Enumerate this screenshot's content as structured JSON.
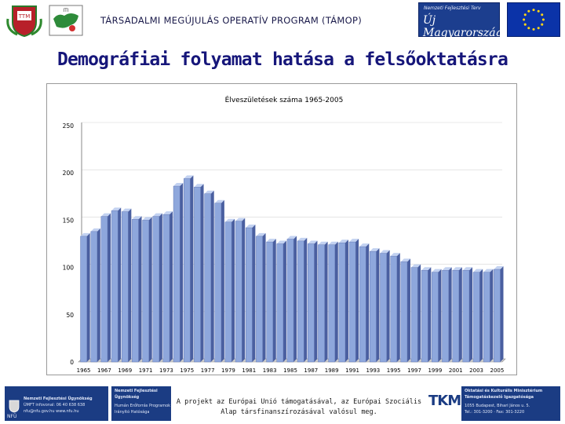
{
  "header": {
    "program_title": "TÁRSADALMI MEGÚJULÁS OPERATÍV PROGRAM (TÁMOP)",
    "logo_crest_text": "TTM",
    "logo_map_text": "ITI",
    "um_logo_top": "Nemzeti Fejlesztési Terv",
    "um_logo_main": "Új Magyarország"
  },
  "slide": {
    "title": "Demográfiai folyamat hatása a felsőoktatásra"
  },
  "colors": {
    "title": "#16167a",
    "bar_face": "#8ea7dc",
    "bar_side": "#4a5fa0",
    "bar_top": "#c3d2f1",
    "plot_bg": "#ffffff",
    "frame": "#9a9a9a"
  },
  "chart_data": {
    "type": "bar",
    "title": "Élveszületések száma 1965-2005",
    "xlabel": "",
    "ylabel": "",
    "ylim": [
      0,
      250
    ],
    "yticks": [
      0,
      50,
      100,
      150,
      200,
      250
    ],
    "grid": "none",
    "legend": "none",
    "three_d": true,
    "categories": [
      "1965",
      "1966",
      "1967",
      "1968",
      "1969",
      "1970",
      "1971",
      "1972",
      "1973",
      "1974",
      "1975",
      "1976",
      "1977",
      "1978",
      "1979",
      "1980",
      "1981",
      "1982",
      "1983",
      "1984",
      "1985",
      "1986",
      "1987",
      "1988",
      "1989",
      "1990",
      "1991",
      "1992",
      "1993",
      "1994",
      "1995",
      "1996",
      "1997",
      "1998",
      "1999",
      "2000",
      "2001",
      "2002",
      "2003",
      "2004",
      "2005"
    ],
    "labeled_ticks": [
      "1965",
      "1967",
      "1969",
      "1971",
      "1973",
      "1975",
      "1977",
      "1979",
      "1981",
      "1983",
      "1985",
      "1987",
      "1989",
      "1991",
      "1993",
      "1995",
      "1997",
      "1999",
      "2001",
      "2003",
      "2005"
    ],
    "values": [
      133,
      138,
      154,
      160,
      159,
      151,
      150,
      154,
      156,
      186,
      194,
      185,
      178,
      168,
      148,
      149,
      142,
      133,
      127,
      125,
      130,
      128,
      125,
      124,
      124,
      126,
      127,
      122,
      117,
      115,
      112,
      106,
      100,
      97,
      95,
      97,
      97,
      97,
      95,
      95,
      98
    ]
  },
  "footer": {
    "left_box_line1": "Nemzeti Fejlesztési Ügynökség",
    "left_box_line2": "ÚMFT infovonal: 06 40 638 638",
    "left_box_line3": "nfu@nfu.gov.hu  www.nfu.hu",
    "left_box_logo": "NFÜ",
    "mid_box_line1": "Nemzeti Fejlesztési",
    "mid_box_line2": "Ügynökség",
    "mid_box_line3": "Humán Erőforrás Programok",
    "mid_box_line4": "Irányító Hatósága",
    "center_line1": "A projekt az Európai Unió támogatásával, az Európai Szociális",
    "center_line2": "Alap társfinanszírozásával valósul meg.",
    "tkm_letters": "TKM",
    "right_box_line1": "Oktatási és Kulturális Minisztérium",
    "right_box_line2": "Támogatáskezelő Igazgatósága",
    "right_box_line3": "1055 Budapest, Bihari János u. 5.",
    "right_box_line4": "Tel.: 301-3200 · Fax: 301-3220"
  }
}
